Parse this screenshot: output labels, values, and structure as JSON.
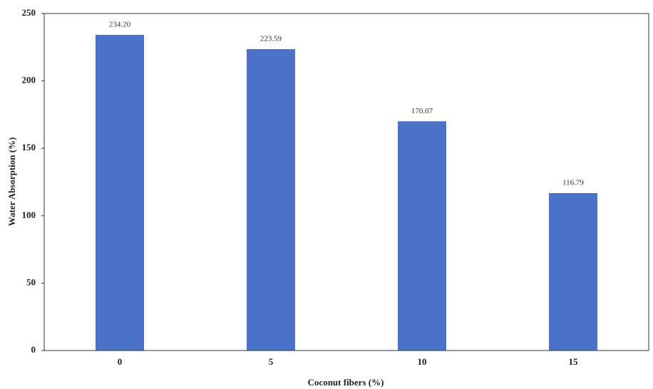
{
  "chart_data": {
    "type": "bar",
    "x_label": "Coconut fibers (%)",
    "y_label": "Water Absorption (%)",
    "categories": [
      "0",
      "5",
      "10",
      "15"
    ],
    "values": [
      234.2,
      223.59,
      170.07,
      116.79
    ],
    "value_labels": [
      "234.20",
      "223.59",
      "170.07",
      "116.79"
    ],
    "color": "#4a72c8",
    "ylim": [
      0,
      250
    ],
    "yticks": [
      0,
      50,
      100,
      150,
      200,
      250
    ],
    "grid": false
  }
}
